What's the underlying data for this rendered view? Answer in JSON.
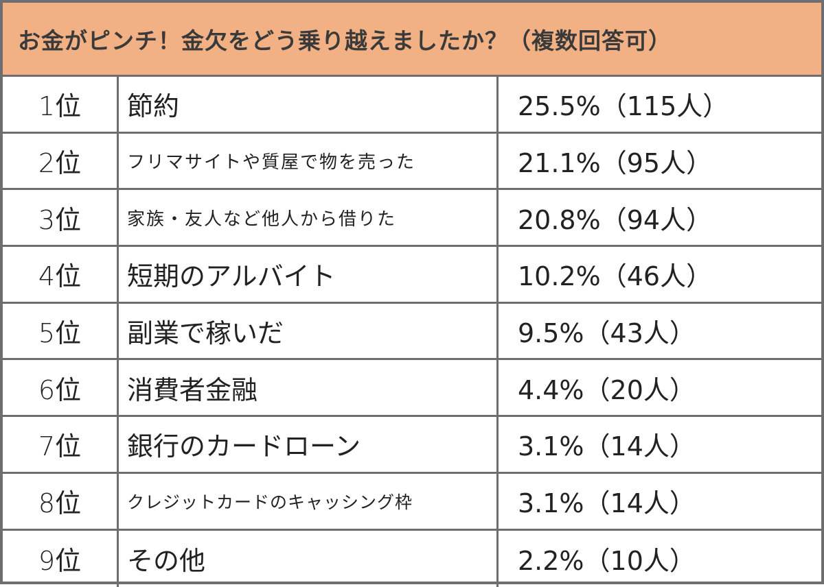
{
  "title": "お金がピンチ！金欠をどう乗り越えましたか？（複数回答可）",
  "colors": {
    "header_bg": "#f2b184",
    "border": "#6e6e6e"
  },
  "rows": [
    {
      "rank": "1位",
      "item": "節約",
      "value": "25.5%（115人）",
      "small": false
    },
    {
      "rank": "2位",
      "item": "フリマサイトや質屋で物を売った",
      "value": "21.1%（95人）",
      "small": true
    },
    {
      "rank": "3位",
      "item": "家族・友人など他人から借りた",
      "value": "20.8%（94人）",
      "small": true
    },
    {
      "rank": "4位",
      "item": "短期のアルバイト",
      "value": "10.2%（46人）",
      "small": false
    },
    {
      "rank": "5位",
      "item": "副業で稼いだ",
      "value": " 9.5%（43人）",
      "small": false
    },
    {
      "rank": "6位",
      "item": "消費者金融",
      "value": "4.4%（20人）",
      "small": false
    },
    {
      "rank": "7位",
      "item": "銀行のカードローン",
      "value": "3.1%（14人）",
      "small": false
    },
    {
      "rank": "8位",
      "item": "クレジットカードのキャッシング枠",
      "value": "3.1%（14人）",
      "small": true
    },
    {
      "rank": "9位",
      "item": "その他",
      "value": "2.2%（10人）",
      "small": false
    }
  ]
}
